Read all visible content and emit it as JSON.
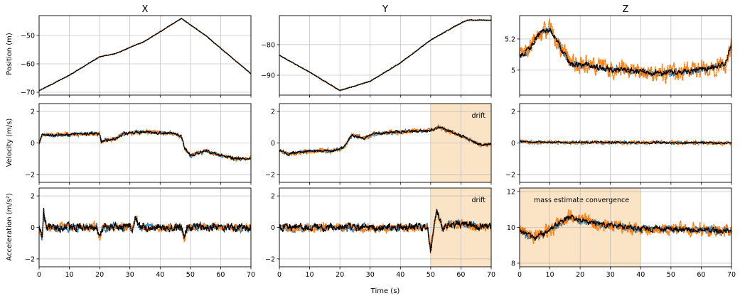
{
  "colors": {
    "series_a": "#1f77b4",
    "series_b": "#ff7f0e",
    "series_c": "#000000",
    "shade": "#fbe3c6",
    "grid": "#b0b0b0"
  },
  "columns": [
    "X",
    "Y",
    "Z"
  ],
  "row_labels": [
    "Position (m)",
    "Velocity (m/s)",
    "Acceleration (m/s²)"
  ],
  "xlabel": "Time (s)",
  "chart_data": {
    "type": "line",
    "layout": "grid 3x3, shared x axis",
    "grid": true,
    "x_range": [
      0,
      70
    ],
    "x_ticks": [
      0,
      10,
      20,
      30,
      40,
      50,
      60,
      70
    ],
    "series_styles": [
      "blue dotted",
      "orange dotted",
      "black dotted"
    ],
    "panels": [
      {
        "row": 0,
        "col": 0,
        "ylim": [
          -71,
          -43
        ],
        "yticks": [
          -70,
          -60,
          -50
        ],
        "keypoints": [
          [
            0,
            -69.5
          ],
          [
            10,
            -64
          ],
          [
            20,
            -57.5
          ],
          [
            25,
            -56.5
          ],
          [
            35,
            -52
          ],
          [
            47,
            -44
          ],
          [
            55,
            -50
          ],
          [
            65,
            -59
          ],
          [
            70,
            -63.5
          ]
        ],
        "noise": [
          0.1,
          0.1,
          0.1
        ]
      },
      {
        "row": 0,
        "col": 1,
        "ylim": [
          -96.5,
          -70.5
        ],
        "yticks": [
          -90,
          -80
        ],
        "keypoints": [
          [
            0,
            -83.5
          ],
          [
            10,
            -89
          ],
          [
            20,
            -95
          ],
          [
            30,
            -92
          ],
          [
            40,
            -86
          ],
          [
            50,
            -78.5
          ],
          [
            58,
            -74
          ],
          [
            62,
            -72
          ],
          [
            70,
            -72
          ]
        ],
        "noise": [
          0.1,
          0.1,
          0.1
        ]
      },
      {
        "row": 0,
        "col": 2,
        "ylim": [
          4.84,
          5.35
        ],
        "yticks": [
          5.0,
          5.2
        ],
        "keypoints": [
          [
            0,
            5.09
          ],
          [
            3,
            5.13
          ],
          [
            7,
            5.25
          ],
          [
            10,
            5.26
          ],
          [
            14,
            5.13
          ],
          [
            17,
            5.04
          ],
          [
            25,
            5.02
          ],
          [
            35,
            5.0
          ],
          [
            45,
            4.98
          ],
          [
            55,
            4.99
          ],
          [
            65,
            5.02
          ],
          [
            68,
            5.05
          ],
          [
            70,
            5.16
          ]
        ],
        "noise": [
          0.02,
          0.05,
          0.015
        ]
      },
      {
        "row": 1,
        "col": 0,
        "ylim": [
          -2.5,
          2.5
        ],
        "yticks": [
          -2,
          0,
          2
        ],
        "keypoints": [
          [
            0,
            0
          ],
          [
            1,
            0.5
          ],
          [
            20,
            0.6
          ],
          [
            20.5,
            0.1
          ],
          [
            25,
            0.25
          ],
          [
            28,
            0.6
          ],
          [
            35,
            0.7
          ],
          [
            45,
            0.6
          ],
          [
            47,
            0.4
          ],
          [
            48,
            -0.3
          ],
          [
            50,
            -0.8
          ],
          [
            55,
            -0.5
          ],
          [
            60,
            -0.8
          ],
          [
            65,
            -1.0
          ],
          [
            70,
            -1.0
          ]
        ],
        "noise": [
          0.1,
          0.1,
          0.07
        ]
      },
      {
        "row": 1,
        "col": 1,
        "ylim": [
          -2.5,
          2.5
        ],
        "yticks": [
          -2,
          0,
          2
        ],
        "keypoints": [
          [
            0,
            -0.5
          ],
          [
            3,
            -0.7
          ],
          [
            10,
            -0.5
          ],
          [
            18,
            -0.5
          ],
          [
            21,
            -0.3
          ],
          [
            24,
            0.5
          ],
          [
            28,
            0.3
          ],
          [
            32,
            0.6
          ],
          [
            40,
            0.7
          ],
          [
            50,
            0.8
          ],
          [
            53,
            1.0
          ],
          [
            58,
            0.6
          ],
          [
            62,
            0.3
          ],
          [
            66,
            -0.1
          ],
          [
            70,
            -0.1
          ]
        ],
        "noise": [
          0.1,
          0.12,
          0.07
        ]
      },
      {
        "row": 1,
        "col": 2,
        "ylim": [
          -2.5,
          2.5
        ],
        "yticks": [
          -2,
          0,
          2
        ],
        "keypoints": [
          [
            0,
            0.1
          ],
          [
            3,
            0.05
          ],
          [
            70,
            0.0
          ]
        ],
        "noise": [
          0.08,
          0.1,
          0.05
        ]
      },
      {
        "row": 2,
        "col": 0,
        "ylim": [
          -2.5,
          2.5
        ],
        "yticks": [
          -2,
          0,
          2
        ],
        "keypoints": [
          [
            0,
            0
          ],
          [
            1,
            -0.6
          ],
          [
            1.5,
            1.0
          ],
          [
            2.5,
            0
          ],
          [
            19,
            0
          ],
          [
            20,
            -0.7
          ],
          [
            21,
            0
          ],
          [
            31,
            0
          ],
          [
            32,
            0.7
          ],
          [
            33,
            0
          ],
          [
            47,
            0
          ],
          [
            48,
            -0.8
          ],
          [
            49,
            0
          ],
          [
            70,
            0
          ]
        ],
        "noise": [
          0.2,
          0.22,
          0.22
        ]
      },
      {
        "row": 2,
        "col": 1,
        "ylim": [
          -2.5,
          2.5
        ],
        "yticks": [
          -2,
          0,
          2
        ],
        "keypoints": [
          [
            0,
            0
          ],
          [
            49,
            0
          ],
          [
            50,
            -1.5
          ],
          [
            51,
            0
          ],
          [
            52,
            1.1
          ],
          [
            54,
            -0.2
          ],
          [
            56,
            0.3
          ],
          [
            70,
            0
          ]
        ],
        "noise": [
          0.2,
          0.25,
          0.2
        ]
      },
      {
        "row": 2,
        "col": 2,
        "ylim": [
          7.8,
          12.2
        ],
        "yticks": [
          8,
          10,
          12
        ],
        "keypoints": [
          [
            0,
            9.8
          ],
          [
            5,
            9.4
          ],
          [
            10,
            9.9
          ],
          [
            17,
            10.6
          ],
          [
            25,
            10.2
          ],
          [
            40,
            9.9
          ],
          [
            55,
            9.9
          ],
          [
            70,
            9.8
          ]
        ],
        "noise": [
          0.2,
          0.32,
          0.12
        ]
      }
    ],
    "shaded_regions": [
      {
        "row": 1,
        "col": 1,
        "x": [
          50,
          70
        ],
        "label": "drift"
      },
      {
        "row": 2,
        "col": 1,
        "x": [
          50,
          70
        ],
        "label": "drift"
      },
      {
        "row": 2,
        "col": 2,
        "x": [
          0,
          40
        ],
        "label": "mass estimate convergence"
      }
    ]
  }
}
